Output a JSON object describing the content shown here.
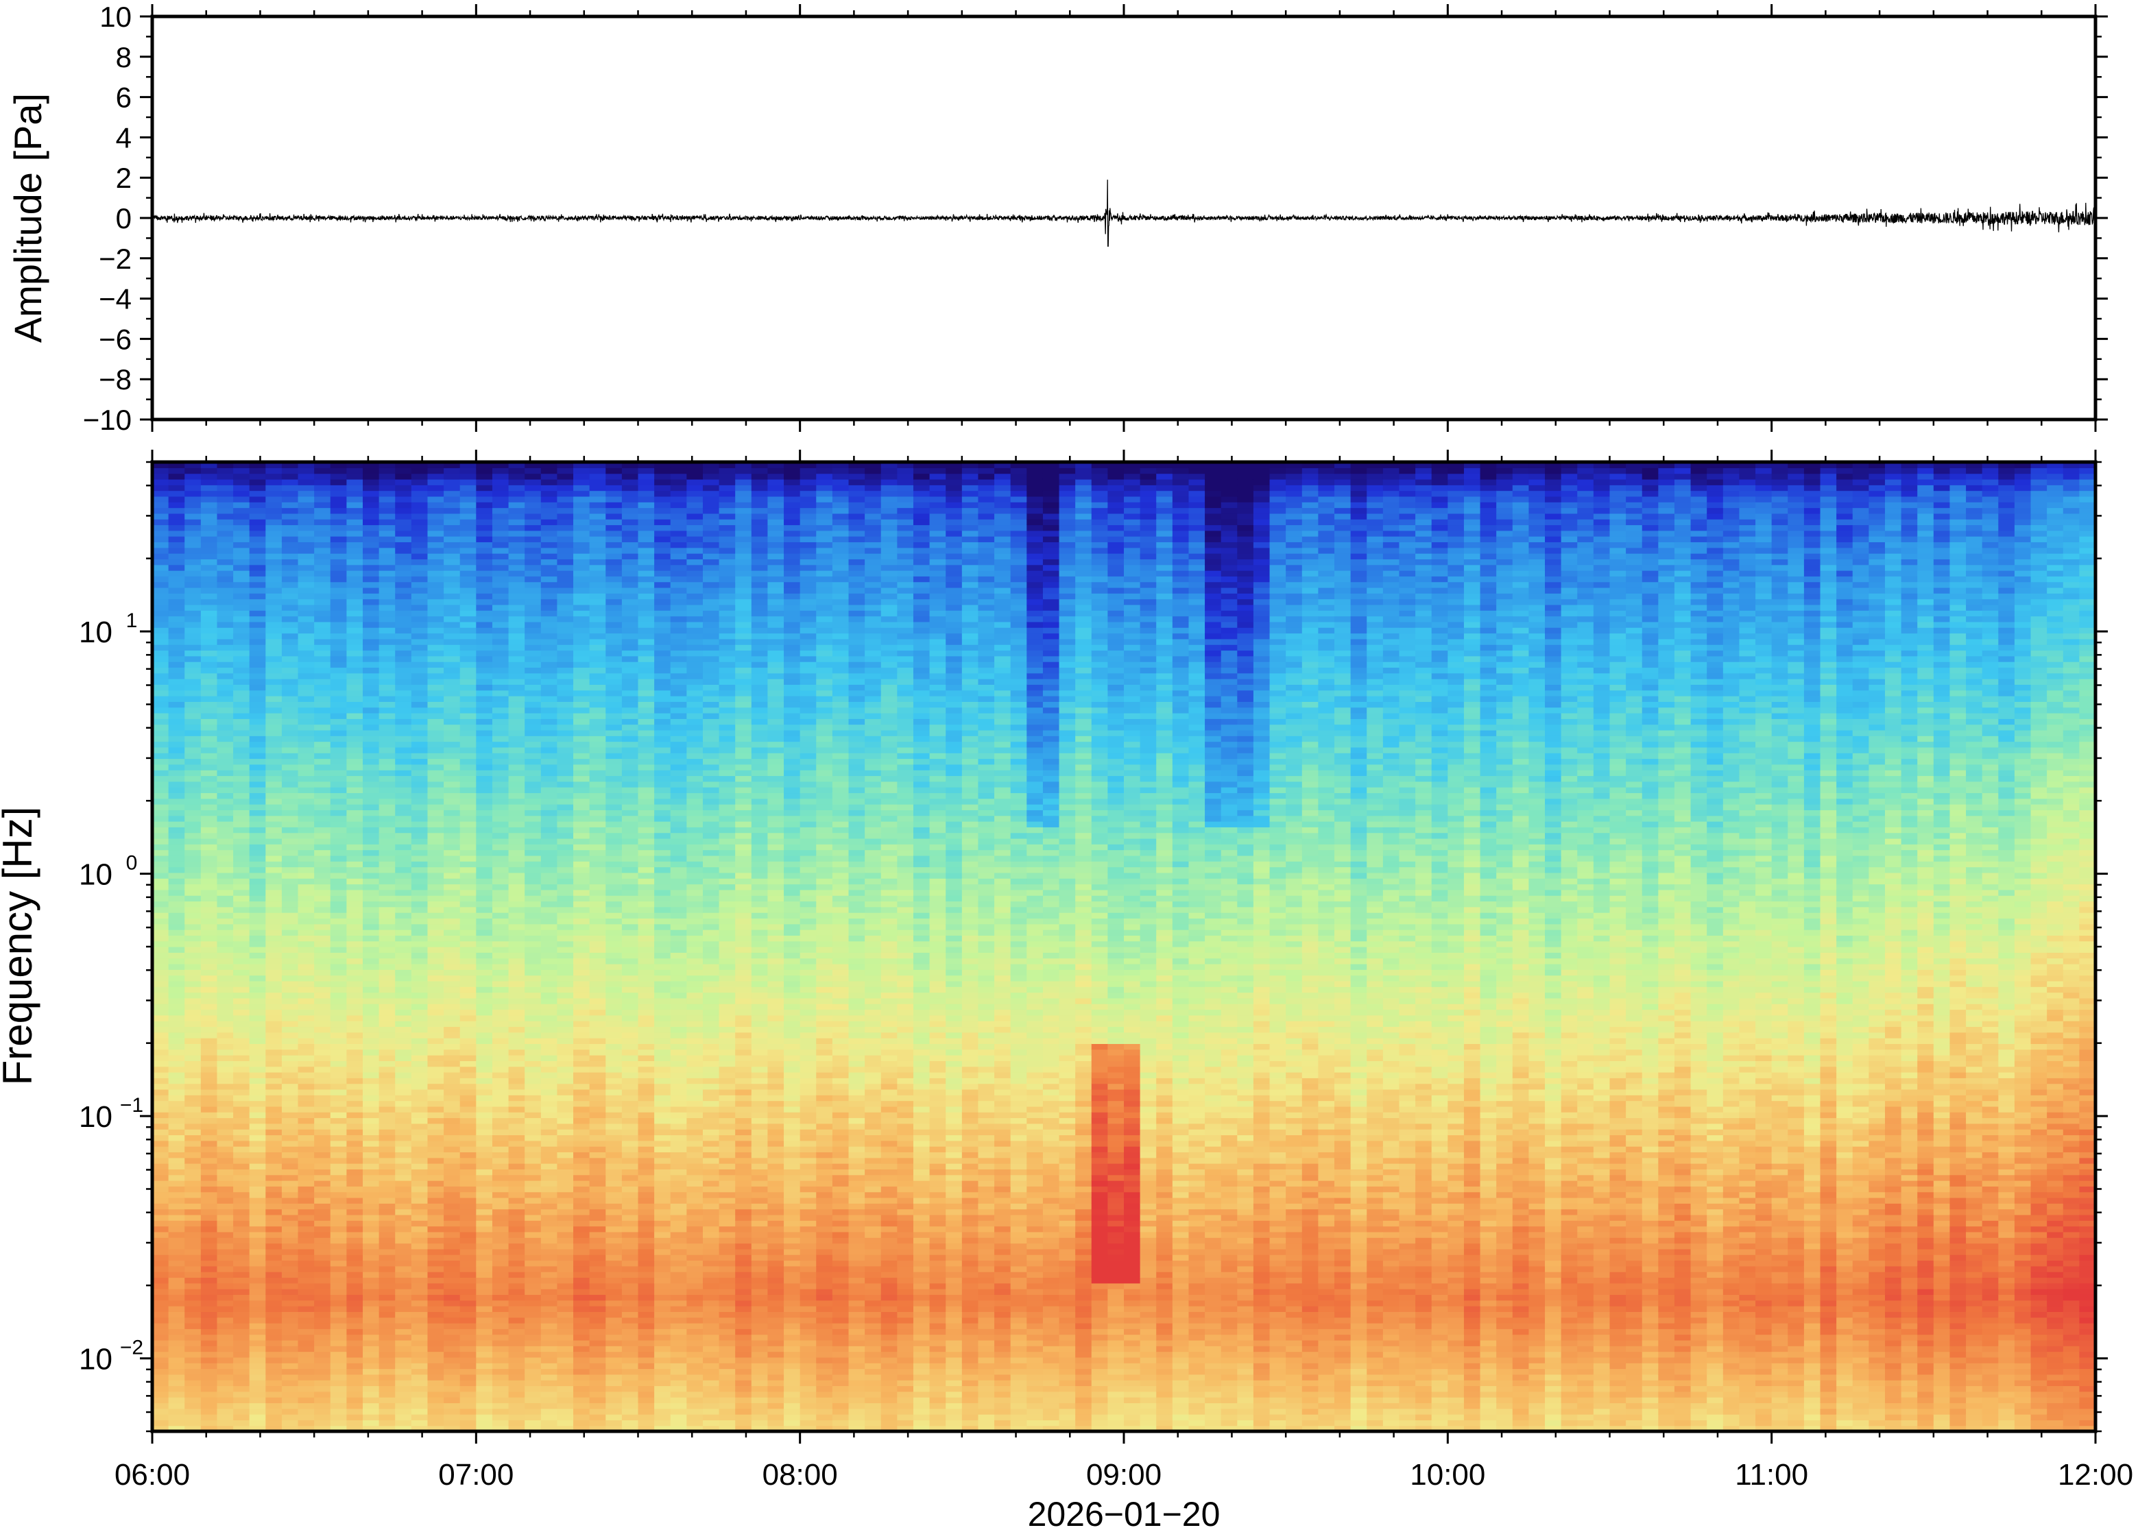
{
  "chart_data": [
    {
      "type": "line",
      "panel": "waveform",
      "ylabel": "Amplitude [Pa]",
      "ylim": [
        -10,
        10
      ],
      "yticks": [
        {
          "v": 10,
          "label": "10"
        },
        {
          "v": 8,
          "label": "8"
        },
        {
          "v": 6,
          "label": "6"
        },
        {
          "v": 4,
          "label": "4"
        },
        {
          "v": 2,
          "label": "2"
        },
        {
          "v": 0,
          "label": "0"
        },
        {
          "v": -2,
          "label": "−2"
        },
        {
          "v": -4,
          "label": "−4"
        },
        {
          "v": -6,
          "label": "−6"
        },
        {
          "v": -8,
          "label": "−8"
        },
        {
          "v": -10,
          "label": "−10"
        }
      ],
      "series": [
        {
          "x_hours": [
            6.0,
            6.5,
            7.0,
            7.5,
            8.0,
            8.5,
            8.9,
            8.95,
            9.0,
            9.1,
            9.5,
            10.0,
            10.5,
            11.0,
            11.2,
            11.5,
            11.8,
            12.0
          ],
          "envelope_pa": [
            0.4,
            0.35,
            0.3,
            0.35,
            0.3,
            0.3,
            0.4,
            1.9,
            0.4,
            0.35,
            0.3,
            0.3,
            0.35,
            0.45,
            0.7,
            0.9,
            1.1,
            1.2
          ],
          "spike": {
            "x_hours": 8.95,
            "max": 1.9,
            "min": -1.4
          }
        }
      ],
      "line_color": "#000000"
    },
    {
      "type": "heatmap",
      "panel": "spectrogram",
      "ylabel": "Frequency [Hz]",
      "yscale": "log",
      "ylim": [
        0.005,
        50
      ],
      "yticks": [
        {
          "v": 0.01,
          "base": "10",
          "exp": "−2"
        },
        {
          "v": 0.1,
          "base": "10",
          "exp": "−1"
        },
        {
          "v": 1,
          "base": "10",
          "exp": "0"
        },
        {
          "v": 10,
          "base": "10",
          "exp": "1"
        }
      ],
      "colormap": [
        "#1a0a6e",
        "#1f2fd6",
        "#2f8fe8",
        "#3ec8f0",
        "#7fe6c0",
        "#c6f59a",
        "#f2ea8a",
        "#f7b760",
        "#f07a40",
        "#e43a3a"
      ],
      "features": {
        "event_x_hours": 8.97,
        "event_band_hz": [
          0.02,
          0.2
        ],
        "late_increase_from_hours": 11.0,
        "quiet_columns_hours": [
          8.75,
          9.3,
          9.4
        ]
      }
    }
  ],
  "xaxis": {
    "xlabel": "2026−01−20",
    "xlim_hours": [
      6,
      12
    ],
    "xticks": [
      {
        "v": 6,
        "label": "06:00"
      },
      {
        "v": 7,
        "label": "07:00"
      },
      {
        "v": 8,
        "label": "08:00"
      },
      {
        "v": 9,
        "label": "09:00"
      },
      {
        "v": 10,
        "label": "10:00"
      },
      {
        "v": 11,
        "label": "11:00"
      },
      {
        "v": 12,
        "label": "12:00"
      }
    ]
  }
}
